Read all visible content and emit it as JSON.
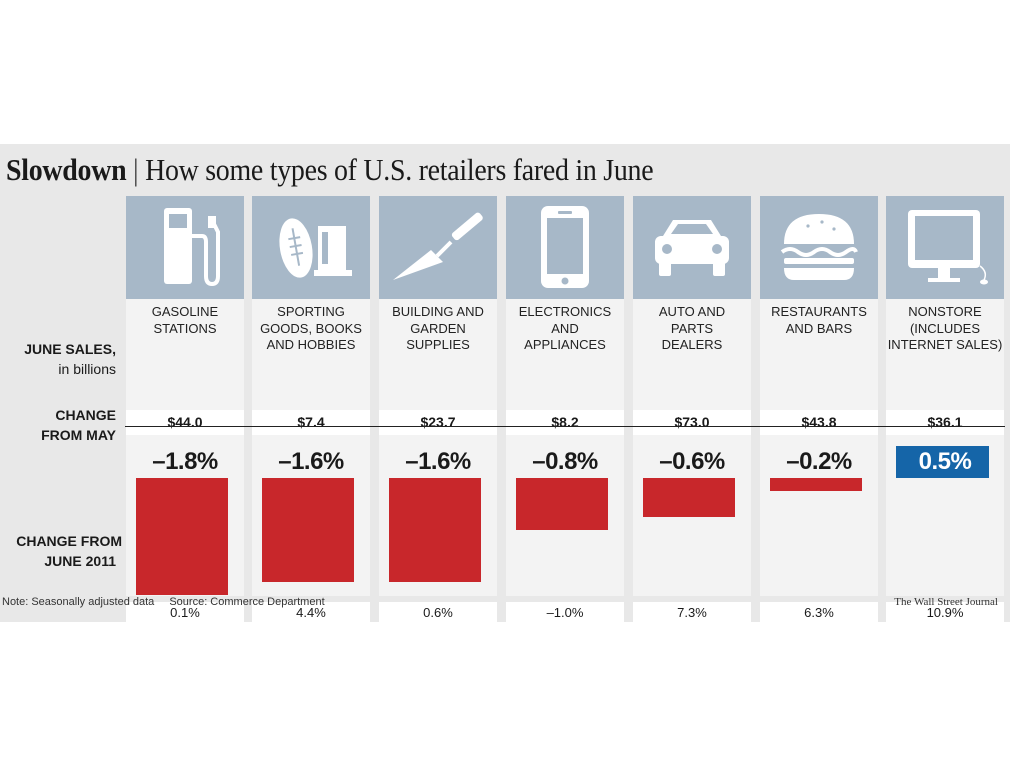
{
  "title": {
    "bold": "Slowdown",
    "separator": "|",
    "text": "How some types of U.S. retailers fared in June"
  },
  "row_labels": {
    "sales_line1": "JUNE SALES,",
    "sales_line2": "in billions",
    "change_line1": "CHANGE",
    "change_line2": "FROM MAY",
    "yoy_line1": "CHANGE FROM",
    "yoy_line2": "JUNE 2011"
  },
  "footer": {
    "note": "Note: Seasonally adjusted data",
    "source": "Source: Commerce Department",
    "credit": "The Wall Street Journal"
  },
  "colors": {
    "background": "#e8e8e8",
    "icon_tile": "#a7b8c8",
    "negative_bar": "#c8272b",
    "positive_box": "#1565a8"
  },
  "chart_data": {
    "type": "bar",
    "title": "Slowdown | How some types of U.S. retailers fared in June",
    "categories": [
      {
        "label": "GASOLINE\nSTATIONS",
        "icon": "gas-pump-icon",
        "sales": "$44.0",
        "change": "–1.8%",
        "change_value": -1.8,
        "yoy": "0.1%",
        "yoy_value": 0.1
      },
      {
        "label": "SPORTING\nGOODS, BOOKS\nAND HOBBIES",
        "icon": "football-book-icon",
        "sales": "$7.4",
        "change": "–1.6%",
        "change_value": -1.6,
        "yoy": "4.4%",
        "yoy_value": 4.4
      },
      {
        "label": "BUILDING AND\nGARDEN\nSUPPLIES",
        "icon": "trowel-icon",
        "sales": "$23.7",
        "change": "–1.6%",
        "change_value": -1.6,
        "yoy": "0.6%",
        "yoy_value": 0.6
      },
      {
        "label": "ELECTRONICS\nAND\nAPPLIANCES",
        "icon": "smartphone-icon",
        "sales": "$8.2",
        "change": "–0.8%",
        "change_value": -0.8,
        "yoy": "–1.0%",
        "yoy_value": -1.0
      },
      {
        "label": "AUTO AND\nPARTS\nDEALERS",
        "icon": "car-icon",
        "sales": "$73.0",
        "change": "–0.6%",
        "change_value": -0.6,
        "yoy": "7.3%",
        "yoy_value": 7.3
      },
      {
        "label": "RESTAURANTS\nAND BARS",
        "icon": "burger-icon",
        "sales": "$43.8",
        "change": "–0.2%",
        "change_value": -0.2,
        "yoy": "6.3%",
        "yoy_value": 6.3
      },
      {
        "label": "NONSTORE\n(INCLUDES\nINTERNET SALES)",
        "icon": "computer-monitor-icon",
        "sales": "$36.1",
        "change": "0.5%",
        "change_value": 0.5,
        "yoy": "10.9%",
        "yoy_value": 10.9
      }
    ],
    "series": [
      {
        "name": "CHANGE FROM MAY",
        "values": [
          -1.8,
          -1.6,
          -1.6,
          -0.8,
          -0.6,
          -0.2,
          0.5
        ]
      }
    ],
    "ylim": [
      -1.8,
      0.5
    ],
    "grid": false
  }
}
